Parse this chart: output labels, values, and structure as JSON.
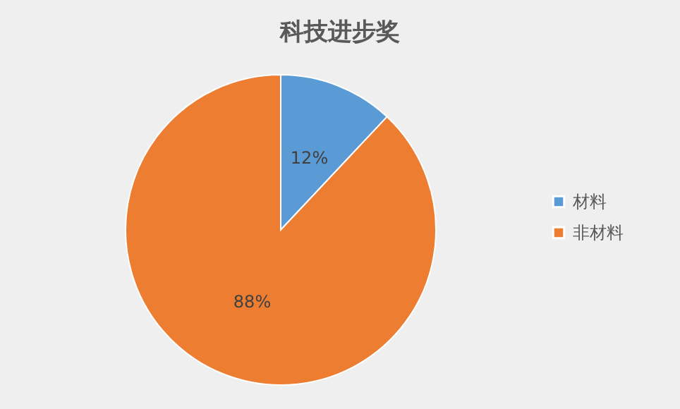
{
  "chart_data": {
    "type": "pie",
    "title": "科技进步奖",
    "categories": [
      "材料",
      "非材料"
    ],
    "values": [
      12,
      88
    ],
    "colors": [
      "#5b9bd5",
      "#ed7d31"
    ],
    "value_labels": [
      "12%",
      "88%"
    ],
    "legend": "right"
  }
}
